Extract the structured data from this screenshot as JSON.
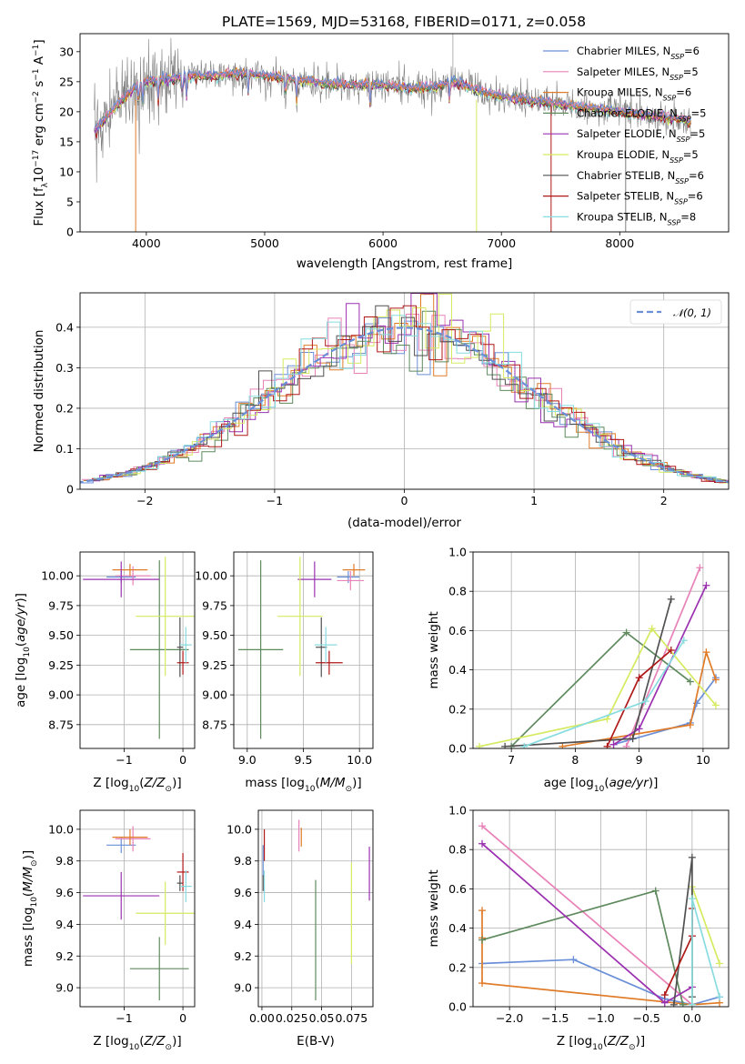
{
  "title": "PLATE=1569, MJD=53168, FIBERID=0171, z=0.058",
  "colors": {
    "Chabrier MILES": "#6a8fd8",
    "Salpeter MILES": "#e882b8",
    "Kroupa MILES": "#e07b28",
    "Chabrier ELODIE": "#5e8a5e",
    "Salpeter ELODIE": "#9b30b0",
    "Kroupa ELODIE": "#d6ea60",
    "Chabrier STELIB": "#505050",
    "Salpeter STELIB": "#b01818",
    "Kroupa STELIB": "#88dce0",
    "data": "#808080"
  },
  "chart_data": [
    {
      "id": "spectrum",
      "type": "line",
      "title": "PLATE=1569, MJD=53168, FIBERID=0171, z=0.058",
      "xlabel": "wavelength [Angstrom, rest frame]",
      "ylabel": "Flux [f_λ 10^-17 erg cm^-2 s^-1 A^-1]",
      "xlim": [
        3440,
        8920
      ],
      "ylim": [
        0,
        33
      ],
      "xticks": [
        4000,
        5000,
        6000,
        7000,
        8000
      ],
      "yticks": [
        0,
        5,
        10,
        15,
        20,
        25,
        30
      ],
      "grid": false,
      "legend_position": "top-right",
      "legend": [
        {
          "name": "Chabrier MILES",
          "sub": "SSP",
          "n": 6
        },
        {
          "name": "Salpeter MILES",
          "sub": "SSP",
          "n": 5
        },
        {
          "name": "Kroupa MILES",
          "sub": "SSP",
          "n": 6
        },
        {
          "name": "Chabrier ELODIE",
          "sub": "SSP",
          "n": 5
        },
        {
          "name": "Salpeter ELODIE",
          "sub": "SSP",
          "n": 5
        },
        {
          "name": "Kroupa ELODIE",
          "sub": "SSP",
          "n": 5
        },
        {
          "name": "Chabrier STELIB",
          "sub": "SSP",
          "n": 6
        },
        {
          "name": "Salpeter STELIB",
          "sub": "SSP",
          "n": 6
        },
        {
          "name": "Kroupa STELIB",
          "sub": "SSP",
          "n": 8
        }
      ],
      "continuum": {
        "x": [
          3560,
          3620,
          3700,
          3800,
          3900,
          4000,
          4200,
          4400,
          4600,
          4800,
          5000,
          5200,
          5400,
          5600,
          5800,
          6000,
          6200,
          6400,
          6600,
          6800,
          7000,
          7200,
          7400,
          7600,
          7800,
          8000,
          8200,
          8400,
          8600
        ],
        "y": [
          17,
          18,
          20,
          22,
          24,
          25,
          25.5,
          26,
          26,
          26.5,
          26,
          25.5,
          25,
          24.5,
          24.5,
          24.5,
          24,
          24,
          25,
          23.5,
          22.5,
          22,
          21.5,
          21,
          20.5,
          20,
          19.5,
          19,
          18.5
        ]
      }
    },
    {
      "id": "residuals",
      "type": "histogram",
      "xlabel": "(data-model)/error",
      "ylabel": "Normed distribution",
      "xlim": [
        -2.5,
        2.5
      ],
      "ylim": [
        0,
        0.485
      ],
      "xticks": [
        -2,
        -1,
        0,
        1,
        2
      ],
      "yticks": [
        0.0,
        0.1,
        0.2,
        0.3,
        0.4
      ],
      "grid": true,
      "legend": [
        {
          "name": "N(0,1)",
          "label": "𝒩(0, 1)"
        }
      ],
      "legend_position": "top-right",
      "bin_width": 0.1
    },
    {
      "id": "age_vs_z",
      "type": "errorbar",
      "xlabel": "Z [log10(Z/Z☉)]",
      "ylabel": "age [log10(age/yr)]",
      "xlim": [
        -1.75,
        0.2
      ],
      "ylim": [
        8.55,
        10.2
      ],
      "xticks": [
        -1,
        0
      ],
      "yticks": [
        8.75,
        9.0,
        9.25,
        9.5,
        9.75,
        10.0
      ],
      "points": [
        {
          "model": "Chabrier MILES",
          "x": -1.05,
          "xerr": 0.25,
          "y": 9.99,
          "yerr": 0.05
        },
        {
          "model": "Salpeter MILES",
          "x": -0.85,
          "xerr": 0.3,
          "y": 10.0,
          "yerr": 0.08
        },
        {
          "model": "Kroupa MILES",
          "x": -0.9,
          "xerr": 0.3,
          "y": 10.05,
          "yerr": 0.05
        },
        {
          "model": "Chabrier ELODIE",
          "x": -0.4,
          "xerr": 0.5,
          "y": 9.38,
          "yerr": 0.75
        },
        {
          "model": "Salpeter ELODIE",
          "x": -1.05,
          "xerr": 0.65,
          "y": 9.97,
          "yerr": 0.15
        },
        {
          "model": "Kroupa ELODIE",
          "x": -0.3,
          "xerr": 0.5,
          "y": 9.66,
          "yerr": 0.5
        },
        {
          "model": "Chabrier STELIB",
          "x": -0.05,
          "xerr": 0.05,
          "y": 9.4,
          "yerr": 0.25
        },
        {
          "model": "Salpeter STELIB",
          "x": 0.0,
          "xerr": 0.1,
          "y": 9.27,
          "yerr": 0.1
        },
        {
          "model": "Kroupa STELIB",
          "x": 0.05,
          "xerr": 0.1,
          "y": 9.42,
          "yerr": 0.15
        }
      ]
    },
    {
      "id": "age_vs_mass",
      "type": "errorbar",
      "xlabel": "mass [log10(M/M☉)]",
      "ylabel": "",
      "xlim": [
        8.88,
        10.12
      ],
      "ylim": [
        8.55,
        10.2
      ],
      "xticks": [
        9.0,
        9.5,
        10.0
      ],
      "yticks": [
        8.75,
        9.0,
        9.25,
        9.5,
        9.75,
        10.0
      ],
      "points": [
        {
          "model": "Chabrier MILES",
          "x": 9.9,
          "xerr": 0.1,
          "y": 9.99,
          "yerr": 0.05
        },
        {
          "model": "Salpeter MILES",
          "x": 9.92,
          "xerr": 0.12,
          "y": 9.96,
          "yerr": 0.08
        },
        {
          "model": "Kroupa MILES",
          "x": 9.95,
          "xerr": 0.1,
          "y": 10.05,
          "yerr": 0.05
        },
        {
          "model": "Chabrier ELODIE",
          "x": 9.12,
          "xerr": 0.2,
          "y": 9.38,
          "yerr": 0.75
        },
        {
          "model": "Salpeter ELODIE",
          "x": 9.6,
          "xerr": 0.15,
          "y": 9.97,
          "yerr": 0.15
        },
        {
          "model": "Kroupa ELODIE",
          "x": 9.47,
          "xerr": 0.2,
          "y": 9.66,
          "yerr": 0.5
        },
        {
          "model": "Chabrier STELIB",
          "x": 9.66,
          "xerr": 0.05,
          "y": 9.4,
          "yerr": 0.25
        },
        {
          "model": "Salpeter STELIB",
          "x": 9.73,
          "xerr": 0.12,
          "y": 9.27,
          "yerr": 0.1
        },
        {
          "model": "Kroupa STELIB",
          "x": 9.7,
          "xerr": 0.1,
          "y": 9.42,
          "yerr": 0.15
        }
      ]
    },
    {
      "id": "weight_vs_age",
      "type": "line",
      "xlabel": "age [log10(age/yr)]",
      "ylabel": "mass weight",
      "xlim": [
        6.4,
        10.4
      ],
      "ylim": [
        0,
        1.0
      ],
      "xticks": [
        7,
        8,
        9,
        10
      ],
      "yticks": [
        0.0,
        0.2,
        0.4,
        0.6,
        0.8,
        1.0
      ],
      "grid": true,
      "series": [
        {
          "model": "Chabrier MILES",
          "x": [
            8.6,
            9.8,
            9.9,
            10.2
          ],
          "y": [
            0.02,
            0.13,
            0.23,
            0.36
          ]
        },
        {
          "model": "Salpeter MILES",
          "x": [
            8.8,
            9.95
          ],
          "y": [
            0.01,
            0.92
          ]
        },
        {
          "model": "Kroupa MILES",
          "x": [
            7.8,
            9.8,
            10.05,
            10.2
          ],
          "y": [
            0.01,
            0.12,
            0.49,
            0.35
          ]
        },
        {
          "model": "Chabrier ELODIE",
          "x": [
            7.0,
            8.8,
            9.8
          ],
          "y": [
            0.01,
            0.59,
            0.34
          ]
        },
        {
          "model": "Salpeter ELODIE",
          "x": [
            8.6,
            9.0,
            10.05
          ],
          "y": [
            0.02,
            0.1,
            0.83
          ]
        },
        {
          "model": "Kroupa ELODIE",
          "x": [
            6.5,
            8.5,
            9.2,
            10.2
          ],
          "y": [
            0.01,
            0.15,
            0.61,
            0.22
          ]
        },
        {
          "model": "Chabrier STELIB",
          "x": [
            6.9,
            8.9,
            9.5
          ],
          "y": [
            0.01,
            0.05,
            0.76
          ]
        },
        {
          "model": "Salpeter STELIB",
          "x": [
            8.5,
            9.0,
            9.5
          ],
          "y": [
            0.01,
            0.36,
            0.5
          ]
        },
        {
          "model": "Kroupa STELIB",
          "x": [
            7.2,
            9.1,
            9.7
          ],
          "y": [
            0.01,
            0.24,
            0.55
          ]
        }
      ]
    },
    {
      "id": "mass_vs_z",
      "type": "errorbar",
      "xlabel": "Z [log10(Z/Z☉)]",
      "ylabel": "mass [log10(M/M☉)]",
      "xlim": [
        -1.75,
        0.2
      ],
      "ylim": [
        8.88,
        10.12
      ],
      "xticks": [
        -1,
        0
      ],
      "yticks": [
        9.0,
        9.2,
        9.4,
        9.6,
        9.8,
        10.0
      ],
      "points": [
        {
          "model": "Chabrier MILES",
          "x": -1.05,
          "xerr": 0.25,
          "y": 9.9,
          "yerr": 0.05
        },
        {
          "model": "Salpeter MILES",
          "x": -0.85,
          "xerr": 0.3,
          "y": 9.94,
          "yerr": 0.08
        },
        {
          "model": "Kroupa MILES",
          "x": -0.9,
          "xerr": 0.3,
          "y": 9.95,
          "yerr": 0.05
        },
        {
          "model": "Chabrier ELODIE",
          "x": -0.4,
          "xerr": 0.5,
          "y": 9.12,
          "yerr": 0.2
        },
        {
          "model": "Salpeter ELODIE",
          "x": -1.05,
          "xerr": 0.65,
          "y": 9.58,
          "yerr": 0.15
        },
        {
          "model": "Kroupa ELODIE",
          "x": -0.3,
          "xerr": 0.5,
          "y": 9.47,
          "yerr": 0.2
        },
        {
          "model": "Chabrier STELIB",
          "x": -0.05,
          "xerr": 0.05,
          "y": 9.66,
          "yerr": 0.05
        },
        {
          "model": "Salpeter STELIB",
          "x": 0.0,
          "xerr": 0.1,
          "y": 9.73,
          "yerr": 0.12
        },
        {
          "model": "Kroupa STELIB",
          "x": 0.05,
          "xerr": 0.1,
          "y": 9.64,
          "yerr": 0.1
        }
      ]
    },
    {
      "id": "mass_vs_ebv",
      "type": "errorbar",
      "xlabel": "E(B-V)",
      "ylabel": "",
      "xlim": [
        -0.003,
        0.093
      ],
      "ylim": [
        8.88,
        10.12
      ],
      "xticks": [
        0.0,
        0.025,
        0.05,
        0.075
      ],
      "xticklabels": [
        "0.00",
        "0.025",
        "0.05",
        "0.075"
      ],
      "yticks": [
        9.0,
        9.2,
        9.4,
        9.6,
        9.8,
        10.0
      ],
      "points": [
        {
          "model": "Chabrier MILES",
          "x": 0.001,
          "xerr": 0,
          "y": 9.8,
          "yerr": 0.1
        },
        {
          "model": "Salpeter MILES",
          "x": 0.031,
          "xerr": 0,
          "y": 9.96,
          "yerr": 0.1
        },
        {
          "model": "Kroupa MILES",
          "x": 0.033,
          "xerr": 0,
          "y": 9.95,
          "yerr": 0.06
        },
        {
          "model": "Chabrier ELODIE",
          "x": 0.045,
          "xerr": 0,
          "y": 9.3,
          "yerr": 0.38
        },
        {
          "model": "Salpeter ELODIE",
          "x": 0.09,
          "xerr": 0,
          "y": 9.72,
          "yerr": 0.17
        },
        {
          "model": "Kroupa ELODIE",
          "x": 0.075,
          "xerr": 0,
          "y": 9.47,
          "yerr": 0.32
        },
        {
          "model": "Chabrier STELIB",
          "x": 0.001,
          "xerr": 0,
          "y": 9.66,
          "yerr": 0.05
        },
        {
          "model": "Salpeter STELIB",
          "x": 0.002,
          "xerr": 0,
          "y": 9.9,
          "yerr": 0.1
        },
        {
          "model": "Kroupa STELIB",
          "x": 0.002,
          "xerr": 0,
          "y": 9.64,
          "yerr": 0.1
        }
      ]
    },
    {
      "id": "weight_vs_z",
      "type": "line",
      "xlabel": "Z [log10(Z/Z☉)]",
      "ylabel": "mass weight",
      "xlim": [
        -2.4,
        0.4
      ],
      "ylim": [
        0,
        1.0
      ],
      "xticks": [
        -2.0,
        -1.5,
        -1.0,
        -0.5,
        0.0
      ],
      "xticklabels": [
        "−2.0",
        "−1.5",
        "−1.0",
        "−0.5",
        "0.0"
      ],
      "yticks": [
        0.0,
        0.2,
        0.4,
        0.6,
        0.8,
        1.0
      ],
      "grid": true,
      "series": [
        {
          "model": "Chabrier MILES",
          "x": [
            -2.3,
            -1.3,
            -0.3,
            0.0,
            0.3
          ],
          "y": [
            0.22,
            0.24,
            0.04,
            0.01,
            0.05
          ]
        },
        {
          "model": "Salpeter MILES",
          "x": [
            -2.3,
            0.0
          ],
          "y": [
            0.92,
            0.01
          ]
        },
        {
          "model": "Kroupa MILES",
          "x": [
            -2.3,
            -2.3,
            -2.3,
            0.0,
            0.3
          ],
          "y": [
            0.49,
            0.35,
            0.12,
            0.01,
            0.02
          ]
        },
        {
          "model": "Chabrier ELODIE",
          "x": [
            -2.3,
            -0.4,
            -0.1
          ],
          "y": [
            0.34,
            0.59,
            0.01
          ]
        },
        {
          "model": "Salpeter ELODIE",
          "x": [
            -2.3,
            -0.3,
            0.0
          ],
          "y": [
            0.83,
            0.02,
            0.1
          ]
        },
        {
          "model": "Kroupa ELODIE",
          "x": [
            0.0,
            0.0,
            0.3
          ],
          "y": [
            0.01,
            0.61,
            0.22
          ]
        },
        {
          "model": "Chabrier STELIB",
          "x": [
            -0.2,
            0.0,
            0.0
          ],
          "y": [
            0.01,
            0.76,
            0.05
          ]
        },
        {
          "model": "Salpeter STELIB",
          "x": [
            -0.3,
            0.0,
            0.0
          ],
          "y": [
            0.06,
            0.36,
            0.5
          ]
        },
        {
          "model": "Kroupa STELIB",
          "x": [
            0.0,
            0.0,
            0.3
          ],
          "y": [
            0.01,
            0.55,
            0.05
          ]
        }
      ]
    }
  ]
}
